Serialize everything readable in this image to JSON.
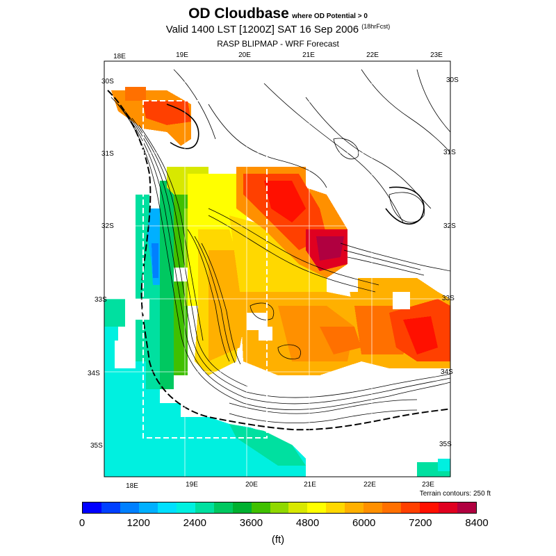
{
  "title": {
    "main": "OD Cloudbase",
    "qualifier": "where OD Potential > 0",
    "valid": "Valid 1400 LST [1200Z] SAT 16 Sep 2006",
    "forecast": "(18hrFcst)",
    "model": "RASP BLIPMAP - WRF Forecast"
  },
  "map": {
    "lon_labels_top": [
      "18E",
      "19E",
      "20E",
      "21E",
      "22E",
      "23E"
    ],
    "lon_labels_bottom": [
      "18E",
      "19E",
      "20E",
      "21E",
      "22E",
      "23E"
    ],
    "lat_labels_left": [
      "30S",
      "31S",
      "32S",
      "33S",
      "34S",
      "35S"
    ],
    "lat_labels_right": [
      "30S",
      "31S",
      "32S",
      "33S",
      "34S",
      "35S"
    ],
    "terrain_note": "Terrain contours: 250 ft"
  },
  "colorbar": {
    "colors": [
      "#0000ff",
      "#0040ff",
      "#0080ff",
      "#00b0ff",
      "#00e0ff",
      "#00f0e0",
      "#00e0a0",
      "#00c860",
      "#00b030",
      "#40c000",
      "#90d800",
      "#d8e800",
      "#ffff00",
      "#ffd800",
      "#ffb000",
      "#ff9000",
      "#ff7000",
      "#ff4000",
      "#ff1000",
      "#e00020",
      "#b00040"
    ],
    "ticks": [
      "0",
      "1200",
      "2400",
      "3600",
      "4800",
      "6000",
      "7200",
      "8400"
    ],
    "units": "(ft)"
  }
}
